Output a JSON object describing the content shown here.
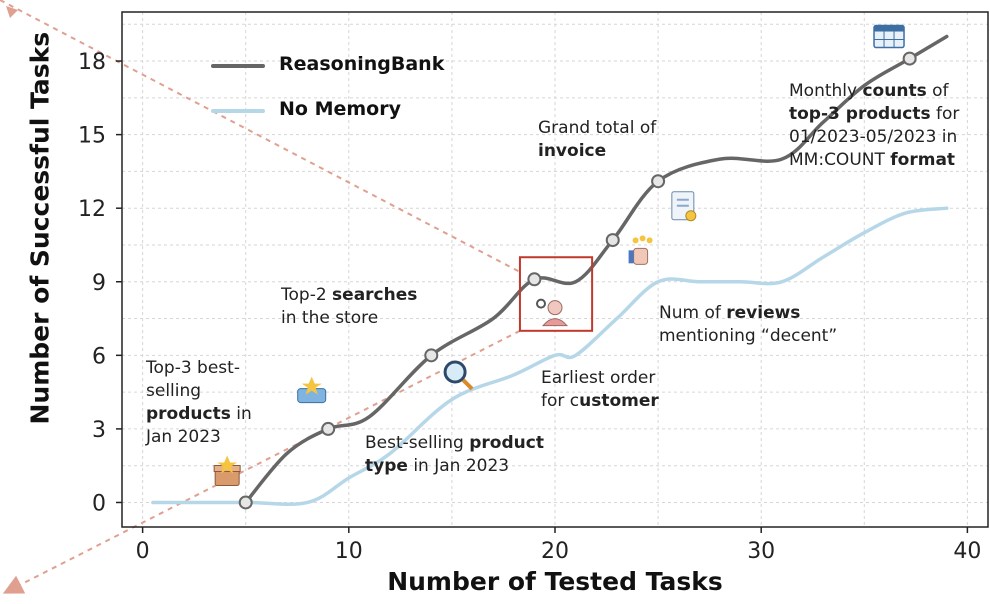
{
  "chart_data": {
    "type": "line",
    "xlabel": "Number of Tested Tasks",
    "ylabel": "Number of Successful Tasks",
    "xlim": [
      -1,
      41
    ],
    "ylim": [
      -1,
      20
    ],
    "xticks": [
      0,
      10,
      20,
      30,
      40
    ],
    "yticks": [
      0,
      3,
      6,
      9,
      12,
      15,
      18
    ],
    "grid": true,
    "legend_position": "top-left",
    "series": [
      {
        "name": "ReasoningBank",
        "color": "#666666",
        "x": [
          5,
          7,
          9,
          11,
          14,
          17,
          19,
          21,
          22.8,
          25,
          28,
          31,
          33,
          35,
          37.2,
          39
        ],
        "y": [
          0,
          2,
          3,
          3.5,
          6,
          7.5,
          9.1,
          9,
          10.7,
          13.1,
          14,
          14,
          15.5,
          17,
          18.1,
          19
        ]
      },
      {
        "name": "No Memory",
        "color": "#b6d7e8",
        "x": [
          0.5,
          5,
          8,
          10,
          12,
          15,
          18,
          20,
          21,
          23,
          25,
          27,
          29,
          31,
          33,
          35,
          37,
          39
        ],
        "y": [
          0,
          0,
          0,
          1,
          2,
          4.2,
          5.2,
          6,
          6,
          7.5,
          9,
          9,
          9,
          9,
          10,
          11,
          11.8,
          12
        ]
      }
    ],
    "milestones": [
      {
        "x": 5,
        "y": 0
      },
      {
        "x": 9,
        "y": 3
      },
      {
        "x": 14,
        "y": 6
      },
      {
        "x": 19,
        "y": 9.1
      },
      {
        "x": 22.8,
        "y": 10.7
      },
      {
        "x": 25,
        "y": 13.1
      },
      {
        "x": 37.2,
        "y": 18.1
      }
    ],
    "annotations": [
      {
        "id": "a1",
        "lines": [
          [
            {
              "t": "Top-3 best-",
              "b": false
            }
          ],
          [
            {
              "t": "selling",
              "b": false
            }
          ],
          [
            {
              "t": "products",
              "b": true
            },
            {
              "t": " in",
              "b": false
            }
          ],
          [
            {
              "t": "Jan 2023",
              "b": false
            }
          ]
        ]
      },
      {
        "id": "a2",
        "lines": [
          [
            {
              "t": "Best-selling ",
              "b": false
            },
            {
              "t": "product",
              "b": true
            }
          ],
          [
            {
              "t": "type",
              "b": true
            },
            {
              "t": " in Jan 2023",
              "b": false
            }
          ]
        ]
      },
      {
        "id": "a3",
        "lines": [
          [
            {
              "t": "Top-2 ",
              "b": false
            },
            {
              "t": "searches",
              "b": true
            }
          ],
          [
            {
              "t": "in the store",
              "b": false
            }
          ]
        ]
      },
      {
        "id": "a4",
        "lines": [
          [
            {
              "t": "Earliest order",
              "b": false
            }
          ],
          [
            {
              "t": "for c",
              "b": false
            },
            {
              "t": "ustomer",
              "b": true
            }
          ]
        ]
      },
      {
        "id": "a5",
        "lines": [
          [
            {
              "t": "Grand total of",
              "b": false
            }
          ],
          [
            {
              "t": "invoice",
              "b": true
            }
          ]
        ]
      },
      {
        "id": "a6",
        "lines": [
          [
            {
              "t": "Num of ",
              "b": false
            },
            {
              "t": "reviews",
              "b": true
            }
          ],
          [
            {
              "t": "mentioning “decent”",
              "b": false
            }
          ]
        ]
      },
      {
        "id": "a7",
        "lines": [
          [
            {
              "t": "Monthly ",
              "b": false
            },
            {
              "t": "counts",
              "b": true
            },
            {
              "t": " of",
              "b": false
            }
          ],
          [
            {
              "t": "top-3 products",
              "b": true
            },
            {
              "t": " for",
              "b": false
            }
          ],
          [
            {
              "t": "01/2023-05/2023 in",
              "b": false
            }
          ],
          [
            {
              "t": "MM:COUNT ",
              "b": false
            },
            {
              "t": "format",
              "b": true
            }
          ]
        ]
      }
    ],
    "icons": [
      {
        "name": "gift-box-icon",
        "x": 4.1,
        "y": 1.1
      },
      {
        "name": "brand-badge-icon",
        "x": 8.2,
        "y": 4.4
      },
      {
        "name": "magnifier-icon",
        "x": 15.3,
        "y": 5.2
      },
      {
        "name": "customer-avatar-icon",
        "x": 20.0,
        "y": 7.7
      },
      {
        "name": "rating-thumbs-icon",
        "x": 24.2,
        "y": 10.2
      },
      {
        "name": "invoice-document-icon",
        "x": 26.2,
        "y": 12.1
      },
      {
        "name": "table-grid-icon",
        "x": 36.2,
        "y": 19.0
      }
    ],
    "highlight": {
      "x0": 18.3,
      "x1": 21.8,
      "y0": 7.0,
      "y1": 10.0,
      "color": "#c0392b"
    },
    "accent_arrow_color": "#e0a090"
  }
}
